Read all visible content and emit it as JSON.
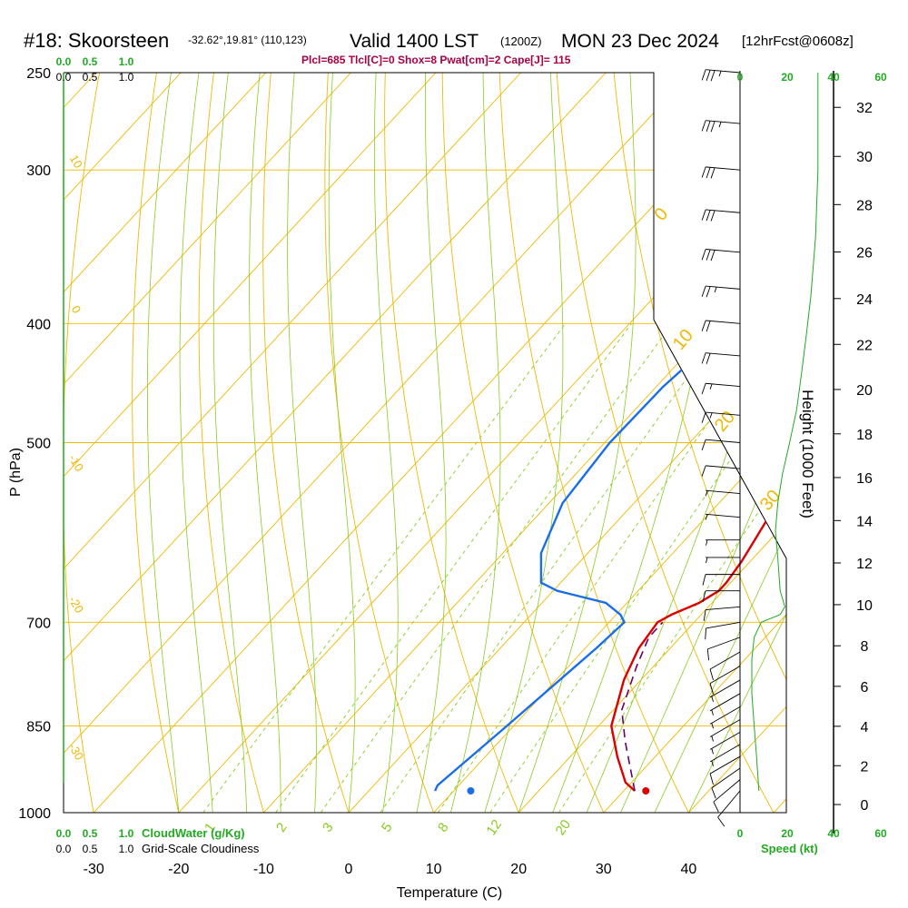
{
  "header": {
    "station": "#18: Skoorsteen",
    "location": "-32.62°,19.81° (110,123)",
    "valid_label": "Valid 1400 LST",
    "valid_utc": "(1200Z)",
    "valid_date": "MON 23 Dec 2024",
    "forecast": "[12hrFcst@0608z]",
    "params": "Plcl=685 Tlcl[C]=0 Shox=8 Pwat[cm]=2 Cape[J]= 115"
  },
  "colors": {
    "isotherm": "#f0b800",
    "dry_adiabat": "#f0b800",
    "moist_adiabat": "#88cc22",
    "mixing_ratio": "#88cc22",
    "temperature": "#dd0000",
    "dewpoint": "#1a6fe8",
    "parcel": "#66006a",
    "green_text": "#22aa22",
    "title_text": "#000000",
    "params_text": "#aa0044"
  },
  "chart_data": {
    "type": "line",
    "title": "#18: Skoorsteen",
    "xlabel": "Temperature (C)",
    "ylabel": "P (hPa)",
    "right_ylabel": "Height (1000 Feet)",
    "xlim": [
      -35,
      50
    ],
    "pressure_ticks": [
      "250",
      "300",
      "400",
      "500",
      "700",
      "850",
      "1000"
    ],
    "pressure_values": [
      250,
      300,
      400,
      500,
      700,
      850,
      1000
    ],
    "temperature_ticks": [
      "-30",
      "-20",
      "-10",
      "0",
      "10",
      "20",
      "30",
      "40"
    ],
    "temperature_values": [
      -30,
      -20,
      -10,
      0,
      10,
      20,
      30,
      40
    ],
    "height_ticks": [
      "0",
      "2",
      "4",
      "6",
      "8",
      "10",
      "12",
      "14",
      "16",
      "18",
      "20",
      "22",
      "24",
      "26",
      "28",
      "30",
      "32"
    ],
    "height_values": [
      0,
      2,
      4,
      6,
      8,
      10,
      12,
      14,
      16,
      18,
      20,
      22,
      24,
      26,
      28,
      30,
      32
    ],
    "theta_labels": [
      "10",
      "0",
      "-10",
      "-20",
      "-30",
      "0",
      "10",
      "20",
      "30"
    ],
    "mixing_ratio_labels": [
      "1",
      "2",
      "3",
      "5",
      "8",
      "12",
      "20"
    ],
    "wind_speed_ticks": [
      "0",
      "20",
      "40",
      "60"
    ],
    "wind_speed_label": "Speed (kt)",
    "cloud_water_ticks": [
      "0.0",
      "0.5",
      "1.0"
    ],
    "cloud_water_label": "CloudWater (g/Kg)",
    "cloudiness_ticks": [
      "0.0",
      "0.5",
      "1.0"
    ],
    "cloudiness_label": "Grid-Scale Cloudiness",
    "series": [
      {
        "role": "temperature",
        "points": [
          [
            31.3,
            960
          ],
          [
            29.3,
            945
          ],
          [
            25.5,
            900
          ],
          [
            21.5,
            850
          ],
          [
            18.0,
            780
          ],
          [
            16.3,
            735
          ],
          [
            15.7,
            700
          ],
          [
            16.5,
            690
          ],
          [
            18.5,
            675
          ],
          [
            19.5,
            660
          ],
          [
            19.5,
            650
          ],
          [
            19.0,
            625
          ],
          [
            16.5,
            550
          ],
          [
            14.8,
            500
          ],
          [
            13.5,
            450
          ],
          [
            11.4,
            400
          ],
          [
            9.0,
            350
          ],
          [
            6.8,
            300
          ],
          [
            4.8,
            270
          ],
          [
            3.7,
            250
          ]
        ]
      },
      {
        "role": "dewpoint",
        "points": [
          [
            7.8,
            960
          ],
          [
            7.5,
            950
          ],
          [
            9.2,
            850
          ],
          [
            11.3,
            735
          ],
          [
            11.8,
            700
          ],
          [
            10.5,
            690
          ],
          [
            7.5,
            675
          ],
          [
            0.5,
            660
          ],
          [
            -2.3,
            650
          ],
          [
            -5.5,
            615
          ],
          [
            -8.4,
            560
          ],
          [
            -9.4,
            500
          ],
          [
            -9.2,
            450
          ],
          [
            -7.8,
            400
          ],
          [
            -7.8,
            375
          ],
          [
            -9.5,
            325
          ],
          [
            -11.5,
            290
          ],
          [
            -13.0,
            265
          ],
          [
            -13.0,
            250
          ]
        ]
      },
      {
        "role": "parcel",
        "points": [
          [
            31.3,
            960
          ],
          [
            24.8,
            875
          ],
          [
            21.0,
            825
          ],
          [
            18.0,
            760
          ],
          [
            16.3,
            720
          ],
          [
            16.3,
            700
          ]
        ]
      }
    ],
    "surface_temperature": 32.6,
    "surface_dewpoint": 12.0,
    "surface_pressure": 960,
    "wind_barbs": [
      {
        "p": 960,
        "speed": 10,
        "dir": 220
      },
      {
        "p": 940,
        "speed": 10,
        "dir": 230
      },
      {
        "p": 920,
        "speed": 10,
        "dir": 235
      },
      {
        "p": 900,
        "speed": 10,
        "dir": 240
      },
      {
        "p": 880,
        "speed": 5,
        "dir": 240
      },
      {
        "p": 860,
        "speed": 5,
        "dir": 240
      },
      {
        "p": 840,
        "speed": 5,
        "dir": 240
      },
      {
        "p": 820,
        "speed": 5,
        "dir": 240
      },
      {
        "p": 800,
        "speed": 5,
        "dir": 240
      },
      {
        "p": 780,
        "speed": 5,
        "dir": 240
      },
      {
        "p": 760,
        "speed": 10,
        "dir": 240
      },
      {
        "p": 740,
        "speed": 10,
        "dir": 240
      },
      {
        "p": 720,
        "speed": 10,
        "dir": 250
      },
      {
        "p": 700,
        "speed": 10,
        "dir": 260
      },
      {
        "p": 680,
        "speed": 10,
        "dir": 265
      },
      {
        "p": 660,
        "speed": 10,
        "dir": 270
      },
      {
        "p": 640,
        "speed": 10,
        "dir": 270
      },
      {
        "p": 620,
        "speed": 5,
        "dir": 270
      },
      {
        "p": 600,
        "speed": 5,
        "dir": 270
      },
      {
        "p": 575,
        "speed": 5,
        "dir": 275
      },
      {
        "p": 550,
        "speed": 5,
        "dir": 275
      },
      {
        "p": 525,
        "speed": 10,
        "dir": 275
      },
      {
        "p": 500,
        "speed": 10,
        "dir": 275
      },
      {
        "p": 475,
        "speed": 15,
        "dir": 275
      },
      {
        "p": 450,
        "speed": 15,
        "dir": 275
      },
      {
        "p": 425,
        "speed": 20,
        "dir": 275
      },
      {
        "p": 400,
        "speed": 20,
        "dir": 275
      },
      {
        "p": 375,
        "speed": 25,
        "dir": 275
      },
      {
        "p": 350,
        "speed": 30,
        "dir": 275
      },
      {
        "p": 325,
        "speed": 30,
        "dir": 275
      },
      {
        "p": 300,
        "speed": 30,
        "dir": 275
      },
      {
        "p": 275,
        "speed": 35,
        "dir": 275
      },
      {
        "p": 250,
        "speed": 35,
        "dir": 275
      }
    ],
    "wind_speed_profile": [
      [
        8,
        960
      ],
      [
        7,
        900
      ],
      [
        6,
        850
      ],
      [
        5,
        800
      ],
      [
        5,
        750
      ],
      [
        6,
        720
      ],
      [
        9,
        700
      ],
      [
        17,
        690
      ],
      [
        19,
        680
      ],
      [
        17,
        660
      ],
      [
        16,
        620
      ],
      [
        15,
        590
      ],
      [
        16,
        560
      ],
      [
        18,
        530
      ],
      [
        21,
        500
      ],
      [
        24,
        470
      ],
      [
        26,
        440
      ],
      [
        28,
        410
      ],
      [
        30,
        380
      ],
      [
        32,
        340
      ],
      [
        33,
        300
      ],
      [
        33,
        250
      ]
    ]
  }
}
